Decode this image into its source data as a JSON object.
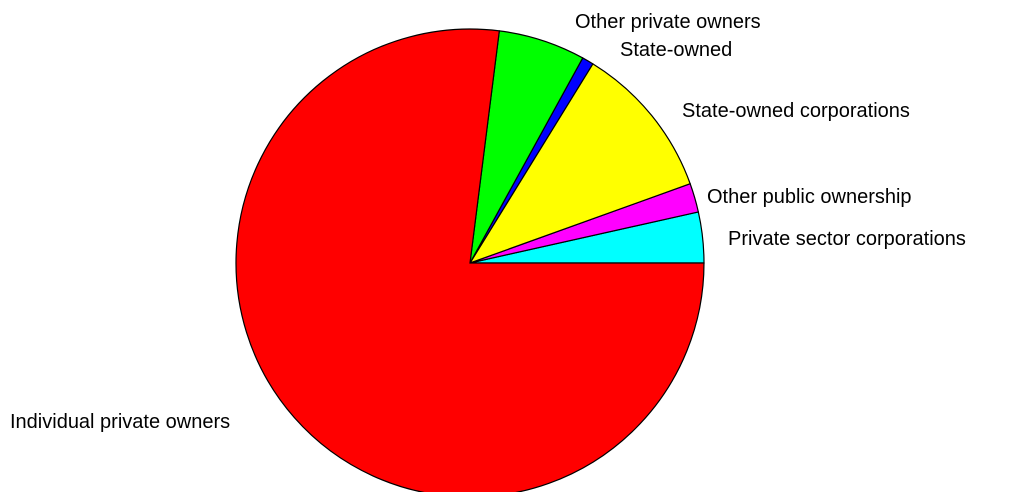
{
  "chart_data": {
    "type": "pie",
    "categories": [
      "Private sector corporations",
      "Other public ownership",
      "State-owned corporations",
      "State-owned",
      "Other private owners",
      "Individual private owners"
    ],
    "values": [
      3.5,
      2.0,
      10.7,
      0.8,
      6.0,
      77.0
    ],
    "colors": [
      "#00ffff",
      "#ff00ff",
      "#ffff00",
      "#0000ff",
      "#00ff00",
      "#ff0000"
    ],
    "start_angle_deg": 0,
    "direction": "counterclockwise",
    "title": "",
    "legend": "none"
  }
}
